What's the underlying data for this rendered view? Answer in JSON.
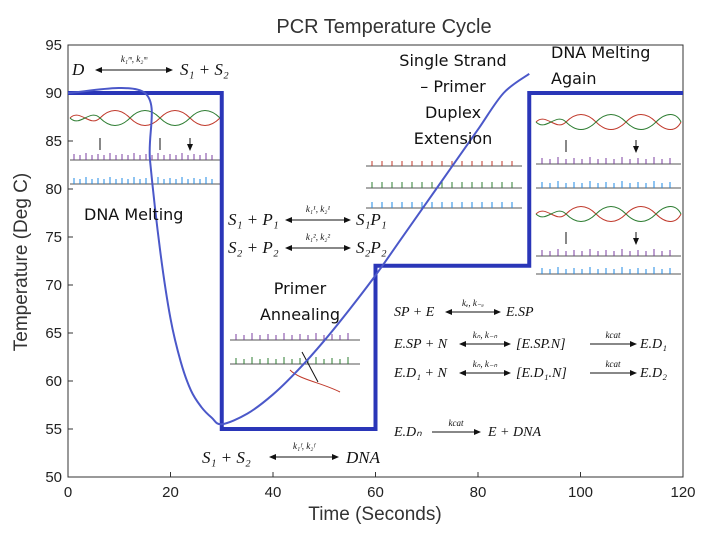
{
  "chart_data": {
    "type": "line",
    "title": "PCR Temperature Cycle",
    "xlabel": "Time (Seconds)",
    "ylabel": "Temperature (Deg C)",
    "xlim": [
      0,
      120
    ],
    "ylim": [
      50,
      95
    ],
    "x_ticks": [
      "0",
      "20",
      "40",
      "60",
      "80",
      "100",
      "120"
    ],
    "y_ticks": [
      "50",
      "55",
      "60",
      "65",
      "70",
      "75",
      "80",
      "85",
      "90",
      "95"
    ],
    "grid": false,
    "series": [
      {
        "style": "step",
        "color": "#2a36b8",
        "x": [
          0,
          30,
          30,
          60,
          60,
          90,
          90,
          120
        ],
        "y": [
          90,
          90,
          55,
          55,
          72,
          72,
          90,
          90
        ]
      },
      {
        "style": "curve",
        "color": "#4b58c9",
        "x": [
          0,
          15,
          16,
          18,
          20,
          22,
          24,
          26,
          28,
          30,
          35,
          40,
          45,
          50,
          55,
          60,
          65,
          70,
          75,
          80,
          85,
          90
        ],
        "y": [
          90,
          90,
          83,
          73.5,
          66.5,
          62,
          59,
          57.3,
          56.2,
          55.5,
          56.6,
          58.6,
          61.2,
          64.2,
          67.5,
          71,
          74.8,
          78.6,
          82.4,
          86.2,
          90,
          92
        ]
      }
    ],
    "annotations": {
      "extension": "Single Strand – Primer Duplex Extension",
      "extension_lines": [
        "Single Strand",
        "– Primer",
        "Duplex",
        "Extension"
      ],
      "melting_again": "DNA Melting Again",
      "melting_again_lines": [
        "DNA Melting",
        "Again"
      ],
      "melting": "DNA Melting",
      "annealing": "Primer Annealing",
      "annealing_lines": [
        "Primer",
        "Annealing"
      ]
    },
    "equations": {
      "melt": {
        "left": "D",
        "rates": "k₁ᵐ, k₂ᵐ",
        "right": "S₁ + S₂"
      },
      "anneal_1": {
        "left": "S₁ + P₁",
        "rates": "k₁¹, k₂¹",
        "right": "S₁P₁"
      },
      "anneal_2": {
        "left": "S₂ + P₂",
        "rates": "k₁², k₂²",
        "right": "S₂P₂"
      },
      "ext_1": {
        "left": "SP + E",
        "rates": "kₑ, k₋ₑ",
        "right": "E.SP"
      },
      "ext_2": {
        "left": "E.SP + N",
        "rates": "kₙ, k₋ₙ",
        "right": "[E.SP.N]",
        "rates2": "kcat",
        "right2": "E.D₁"
      },
      "ext_3": {
        "left": "E.D₁ + N",
        "rates": "kₙ, k₋ₙ",
        "right": "[E.D₁.N]",
        "rates2": "kcat",
        "right2": "E.D₂"
      },
      "ext_4": {
        "left": "E.Dₙ",
        "rates": "kcat",
        "right": "E + DNA"
      },
      "anneal_full": {
        "left": "S₁ + S₂",
        "rates": "k₁ᶠ, k₂ᶠ",
        "right": "DNA"
      }
    }
  }
}
